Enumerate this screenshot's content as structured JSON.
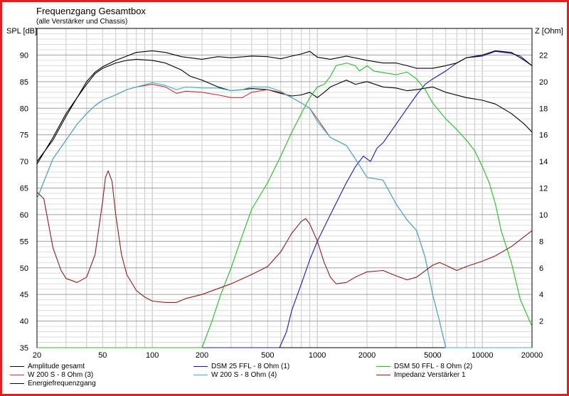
{
  "title": "Frequenzgang Gesamtbox",
  "subtitle": "(alle Verstärker und Chassis)",
  "chart_data": {
    "type": "line",
    "ylabel_left": "SPL [dB]",
    "ylabel_right": "Z [Ohm]",
    "x_scale": "log",
    "xlim": [
      20,
      20000
    ],
    "ylim_left": [
      35,
      95
    ],
    "ylim_right": [
      0,
      24
    ],
    "grid": true,
    "x_ticks": [
      20,
      50,
      100,
      200,
      500,
      1000,
      2000,
      5000,
      10000,
      20000
    ],
    "x_tick_labels": [
      "20",
      "50",
      "100",
      "200",
      "500",
      "1000",
      "2000",
      "5000",
      "10000",
      "20000"
    ],
    "y_ticks_left": [
      35,
      40,
      45,
      50,
      55,
      60,
      65,
      70,
      75,
      80,
      85,
      90
    ],
    "y_ticks_right": [
      2,
      4,
      6,
      8,
      10,
      12,
      14,
      16,
      18,
      20,
      22
    ],
    "series": [
      {
        "name": "Amplitude gesamt",
        "color": "#000000",
        "axis": "left",
        "points": [
          [
            20,
            70
          ],
          [
            25,
            74
          ],
          [
            30,
            78.5
          ],
          [
            35,
            82
          ],
          [
            40,
            84.5
          ],
          [
            45,
            86.5
          ],
          [
            50,
            87.5
          ],
          [
            60,
            88.5
          ],
          [
            70,
            89
          ],
          [
            80,
            89.2
          ],
          [
            100,
            89
          ],
          [
            120,
            88.5
          ],
          [
            150,
            87.2
          ],
          [
            170,
            86
          ],
          [
            200,
            85.3
          ],
          [
            250,
            84
          ],
          [
            300,
            83.3
          ],
          [
            350,
            83.5
          ],
          [
            400,
            83.7
          ],
          [
            500,
            83.5
          ],
          [
            600,
            82.8
          ],
          [
            700,
            82.3
          ],
          [
            800,
            82.5
          ],
          [
            900,
            83
          ],
          [
            1000,
            82
          ],
          [
            1100,
            83
          ],
          [
            1200,
            84
          ],
          [
            1500,
            85.3
          ],
          [
            1700,
            84.5
          ],
          [
            2000,
            85
          ],
          [
            2500,
            84
          ],
          [
            3000,
            83.8
          ],
          [
            3500,
            83.3
          ],
          [
            4000,
            83.5
          ],
          [
            5000,
            84
          ],
          [
            6000,
            83
          ],
          [
            8000,
            82
          ],
          [
            10000,
            81.5
          ],
          [
            12000,
            80.8
          ],
          [
            15000,
            79
          ],
          [
            18000,
            77
          ],
          [
            20000,
            75.5
          ]
        ]
      },
      {
        "name": "DSM 25 FFL - 8 Ohm (1)",
        "color": "#1a1ab4",
        "axis": "left",
        "points": [
          [
            20,
            35
          ],
          [
            590,
            35
          ],
          [
            650,
            38
          ],
          [
            700,
            42
          ],
          [
            800,
            47
          ],
          [
            900,
            51.5
          ],
          [
            1000,
            55
          ],
          [
            1200,
            60
          ],
          [
            1500,
            66
          ],
          [
            1700,
            69
          ],
          [
            1900,
            71
          ],
          [
            2100,
            70
          ],
          [
            2300,
            72.5
          ],
          [
            2500,
            73.5
          ],
          [
            3000,
            77
          ],
          [
            3500,
            80
          ],
          [
            4000,
            82.5
          ],
          [
            4500,
            84.5
          ],
          [
            5000,
            85.5
          ],
          [
            6000,
            87
          ],
          [
            7000,
            88.5
          ],
          [
            8000,
            89.5
          ],
          [
            10000,
            89.8
          ],
          [
            12000,
            90.7
          ],
          [
            15000,
            90.3
          ],
          [
            17000,
            89.8
          ],
          [
            20000,
            88
          ]
        ]
      },
      {
        "name": "DSM 50 FFL - 8 Ohm (2)",
        "color": "#22c022",
        "axis": "left",
        "points": [
          [
            20,
            35
          ],
          [
            200,
            35
          ],
          [
            230,
            40
          ],
          [
            260,
            45
          ],
          [
            300,
            50
          ],
          [
            350,
            56
          ],
          [
            400,
            61
          ],
          [
            500,
            66
          ],
          [
            600,
            71
          ],
          [
            700,
            75.5
          ],
          [
            800,
            79
          ],
          [
            900,
            82
          ],
          [
            1000,
            84
          ],
          [
            1100,
            84.5
          ],
          [
            1200,
            86
          ],
          [
            1300,
            88
          ],
          [
            1500,
            88.5
          ],
          [
            1700,
            88
          ],
          [
            1800,
            87
          ],
          [
            2000,
            88
          ],
          [
            2200,
            87
          ],
          [
            2500,
            86.7
          ],
          [
            3000,
            86.3
          ],
          [
            3500,
            86.8
          ],
          [
            4000,
            85.5
          ],
          [
            4500,
            83.5
          ],
          [
            5000,
            81
          ],
          [
            6000,
            78
          ],
          [
            7000,
            76
          ],
          [
            8000,
            74
          ],
          [
            9000,
            72
          ],
          [
            10000,
            69
          ],
          [
            11000,
            66
          ],
          [
            12000,
            62
          ],
          [
            13000,
            57
          ],
          [
            15000,
            51
          ],
          [
            17000,
            44
          ],
          [
            20000,
            39
          ]
        ]
      },
      {
        "name": "W 200 S - 8 Ohm (3)",
        "color": "#c83232",
        "axis": "left",
        "points": [
          [
            20,
            63
          ],
          [
            25,
            70.5
          ],
          [
            30,
            74
          ],
          [
            35,
            77
          ],
          [
            40,
            79
          ],
          [
            45,
            80.5
          ],
          [
            50,
            81.5
          ],
          [
            60,
            82.5
          ],
          [
            70,
            83.5
          ],
          [
            80,
            84
          ],
          [
            100,
            84.5
          ],
          [
            120,
            84
          ],
          [
            140,
            82.8
          ],
          [
            160,
            83.2
          ],
          [
            200,
            83
          ],
          [
            250,
            82.5
          ],
          [
            300,
            82
          ],
          [
            350,
            82
          ],
          [
            400,
            83
          ],
          [
            500,
            83.5
          ],
          [
            600,
            83
          ],
          [
            700,
            82
          ],
          [
            800,
            81
          ],
          [
            900,
            80
          ],
          [
            1000,
            78
          ],
          [
            1200,
            74.5
          ],
          [
            1500,
            73
          ],
          [
            1700,
            70.5
          ],
          [
            2000,
            67
          ],
          [
            2500,
            66.5
          ],
          [
            3000,
            62
          ],
          [
            3500,
            59
          ],
          [
            4000,
            57
          ],
          [
            4500,
            52
          ],
          [
            5000,
            45
          ],
          [
            5500,
            40
          ],
          [
            6000,
            35
          ],
          [
            20000,
            35
          ]
        ]
      },
      {
        "name": "W 200 S - 8 Ohm (4)",
        "color": "#3cb4c8",
        "axis": "left",
        "points": [
          [
            20,
            63
          ],
          [
            25,
            70.5
          ],
          [
            30,
            74
          ],
          [
            35,
            77
          ],
          [
            40,
            79
          ],
          [
            45,
            80.5
          ],
          [
            50,
            81.5
          ],
          [
            60,
            82.5
          ],
          [
            70,
            83.5
          ],
          [
            80,
            84
          ],
          [
            100,
            84.8
          ],
          [
            120,
            84.3
          ],
          [
            140,
            83.5
          ],
          [
            160,
            84
          ],
          [
            200,
            83.8
          ],
          [
            250,
            83.8
          ],
          [
            300,
            83.3
          ],
          [
            350,
            83.5
          ],
          [
            400,
            84
          ],
          [
            500,
            84
          ],
          [
            600,
            83.2
          ],
          [
            700,
            82
          ],
          [
            800,
            81
          ],
          [
            900,
            80
          ],
          [
            1000,
            77.5
          ],
          [
            1200,
            74.5
          ],
          [
            1500,
            73
          ],
          [
            1700,
            70.5
          ],
          [
            2000,
            67
          ],
          [
            2500,
            66.5
          ],
          [
            3000,
            62
          ],
          [
            3500,
            59
          ],
          [
            4000,
            57
          ],
          [
            4500,
            52
          ],
          [
            5000,
            45
          ],
          [
            5500,
            40
          ],
          [
            6000,
            35
          ],
          [
            20000,
            35
          ]
        ]
      },
      {
        "name": "Energiefrequenzgang",
        "color": "#000000",
        "axis": "left",
        "points": [
          [
            20,
            69.5
          ],
          [
            25,
            74.5
          ],
          [
            30,
            79
          ],
          [
            35,
            82
          ],
          [
            40,
            85
          ],
          [
            45,
            86.8
          ],
          [
            50,
            87.8
          ],
          [
            60,
            89
          ],
          [
            70,
            89.8
          ],
          [
            80,
            90.5
          ],
          [
            100,
            90.8
          ],
          [
            120,
            90.5
          ],
          [
            150,
            89.7
          ],
          [
            200,
            89.2
          ],
          [
            250,
            89.7
          ],
          [
            300,
            89.5
          ],
          [
            400,
            89.8
          ],
          [
            500,
            89.7
          ],
          [
            600,
            89.3
          ],
          [
            700,
            89.8
          ],
          [
            800,
            90.2
          ],
          [
            900,
            90.7
          ],
          [
            1000,
            89.6
          ],
          [
            1200,
            89.2
          ],
          [
            1500,
            89.8
          ],
          [
            2000,
            89
          ],
          [
            2500,
            88.5
          ],
          [
            3000,
            88.5
          ],
          [
            3500,
            88
          ],
          [
            4000,
            87.5
          ],
          [
            5000,
            87.5
          ],
          [
            6000,
            88
          ],
          [
            7000,
            88.5
          ],
          [
            8000,
            89.5
          ],
          [
            10000,
            90
          ],
          [
            12000,
            90.8
          ],
          [
            15000,
            90.5
          ],
          [
            18000,
            89
          ],
          [
            20000,
            88
          ]
        ]
      },
      {
        "name": "Impedanz Verstärker 1",
        "color": "#8c1e1e",
        "axis": "right",
        "points": [
          [
            20,
            11.7
          ],
          [
            22,
            11.2
          ],
          [
            25,
            7.5
          ],
          [
            28,
            5.8
          ],
          [
            30,
            5.2
          ],
          [
            35,
            4.9
          ],
          [
            40,
            5.3
          ],
          [
            45,
            7
          ],
          [
            50,
            11
          ],
          [
            52,
            12.8
          ],
          [
            54,
            13.3
          ],
          [
            57,
            12.5
          ],
          [
            60,
            10
          ],
          [
            65,
            7
          ],
          [
            70,
            5.5
          ],
          [
            80,
            4.3
          ],
          [
            90,
            3.8
          ],
          [
            100,
            3.5
          ],
          [
            120,
            3.4
          ],
          [
            140,
            3.4
          ],
          [
            160,
            3.7
          ],
          [
            200,
            4
          ],
          [
            300,
            4.8
          ],
          [
            400,
            5.5
          ],
          [
            500,
            6.1
          ],
          [
            600,
            7.2
          ],
          [
            700,
            8.6
          ],
          [
            800,
            9.5
          ],
          [
            850,
            9.7
          ],
          [
            900,
            9.3
          ],
          [
            1000,
            8
          ],
          [
            1100,
            6.4
          ],
          [
            1200,
            5.3
          ],
          [
            1300,
            4.8
          ],
          [
            1500,
            4.9
          ],
          [
            1700,
            5.3
          ],
          [
            2000,
            5.7
          ],
          [
            2500,
            5.8
          ],
          [
            3000,
            5.4
          ],
          [
            3500,
            5.1
          ],
          [
            4000,
            5.3
          ],
          [
            5000,
            6.2
          ],
          [
            5500,
            6.4
          ],
          [
            6000,
            6.2
          ],
          [
            7000,
            5.8
          ],
          [
            8000,
            6.1
          ],
          [
            10000,
            6.5
          ],
          [
            12000,
            6.9
          ],
          [
            15000,
            7.6
          ],
          [
            20000,
            8.8
          ]
        ]
      }
    ],
    "legend": {
      "placement": "bottom",
      "entries": [
        "Amplitude gesamt",
        "DSM 25 FFL - 8 Ohm (1)",
        "DSM 50 FFL - 8 Ohm (2)",
        "W 200 S - 8 Ohm (3)",
        "W 200 S - 8 Ohm (4)",
        "Impedanz Verstärker 1",
        "Energiefrequenzgang"
      ]
    }
  }
}
